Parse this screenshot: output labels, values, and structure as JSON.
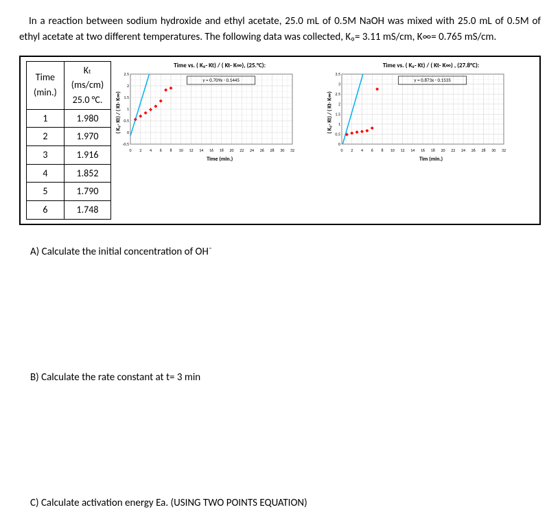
{
  "intro": "In a reaction between sodium hydroxide and ethyl acetate, 25.0 mL of 0.5M NaOH was mixed with 25.0 mL of 0.5M of ethyl acetate at two different temperatures. The following data was collected, K₀= 3.11 mS/cm, K∞= 0.765 mS/cm.",
  "table": {
    "col1": "Time (min.)",
    "col2_a": "Kₜ",
    "col2_b": "(ms/cm)",
    "col2_c": "25.0 °C.",
    "rows": [
      [
        "1",
        "1.980"
      ],
      [
        "2",
        "1.970"
      ],
      [
        "3",
        "1.916"
      ],
      [
        "4",
        "1.852"
      ],
      [
        "5",
        "1.790"
      ],
      [
        "6",
        "1.748"
      ]
    ]
  },
  "chart1": {
    "title": "Time vs. ( K₀- Kt) / ( Kt- K∞), (25.°C):",
    "eq": "y = 0.709x - 0.1445",
    "ylabel": "( K₀- Kt) / ( Kt- K∞)",
    "xlabel": "Time (min.)",
    "xmin": 0,
    "xmax": 32,
    "xstep": 2,
    "ymin": -0.5,
    "ymax": 2.5,
    "ystep": 0.5,
    "points": [
      [
        1,
        0.56
      ],
      [
        2,
        0.7
      ],
      [
        3,
        0.84
      ],
      [
        4,
        0.98
      ],
      [
        5,
        1.12
      ],
      [
        6,
        1.35
      ],
      [
        7,
        1.82
      ],
      [
        8,
        1.9
      ]
    ],
    "line_color": "#00b0f0",
    "point_color": "#ff0000",
    "grid_color": "#d9d9d9",
    "grid_minor_color": "#ececec",
    "axis_color": "#808080",
    "bg": "#ffffff"
  },
  "chart2": {
    "title": "Time vs. ( K₀- Kt) / ( Kt- K∞) , (27.8°C):",
    "eq": "y = 0.873x - 0.1535",
    "ylabel": "( K₀- Kt) / ( Kt- K∞)",
    "xlabel": "Tim (min.)",
    "xmin": 0,
    "xmax": 32,
    "xstep": 2,
    "ymin": 0,
    "ymax": 3.5,
    "ystep": 0.5,
    "points": [
      [
        1,
        0.48
      ],
      [
        2,
        0.55
      ],
      [
        3,
        0.6
      ],
      [
        4,
        0.63
      ],
      [
        5,
        0.67
      ],
      [
        6,
        0.8
      ],
      [
        7,
        2.75
      ]
    ],
    "line_color": "#00b0f0",
    "point_color": "#ff0000",
    "grid_color": "#d9d9d9",
    "grid_minor_color": "#ececec",
    "axis_color": "#808080",
    "bg": "#ffffff"
  },
  "qA": "A)  Calculate the initial concentration of OH⁻",
  "qB": "B)  Calculate the rate constant at t= 3 min",
  "qC": "C)  Calculate activation energy Ea. (USING TWO POINTS EQUATION)"
}
